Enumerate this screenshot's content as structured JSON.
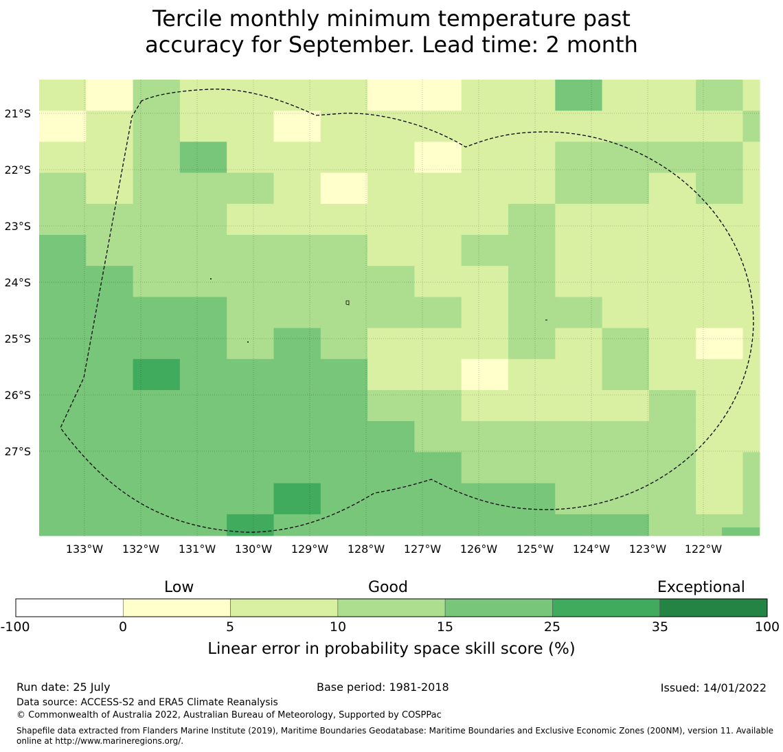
{
  "title": {
    "line1": "Tercile monthly minimum temperature past",
    "line2": "accuracy for September. Lead time: 2 month"
  },
  "map": {
    "lat_labels": [
      "21°S",
      "22°S",
      "23°S",
      "24°S",
      "25°S",
      "26°S",
      "27°S"
    ],
    "lon_labels": [
      "133°W",
      "132°W",
      "131°W",
      "130°W",
      "129°W",
      "128°W",
      "127°W",
      "126°W",
      "125°W",
      "124°W",
      "123°W",
      "122°W"
    ],
    "grid": [
      [
        "c1",
        "c0",
        "c2",
        "c1",
        "c1",
        "c1",
        "c1",
        "c0",
        "c0",
        "c1",
        "c1",
        "c3",
        "c1",
        "c1",
        "c2",
        "c1"
      ],
      [
        "c0",
        "c1",
        "c2",
        "c1",
        "c1",
        "c0",
        "c1",
        "c1",
        "c1",
        "c1",
        "c1",
        "c1",
        "c1",
        "c1",
        "c1",
        "c2"
      ],
      [
        "c1",
        "c1",
        "c2",
        "c3",
        "c1",
        "c1",
        "c1",
        "c1",
        "c0",
        "c1",
        "c1",
        "c2",
        "c2",
        "c2",
        "c2",
        "c1"
      ],
      [
        "c2",
        "c1",
        "c2",
        "c2",
        "c2",
        "c1",
        "c0",
        "c1",
        "c1",
        "c1",
        "c1",
        "c2",
        "c2",
        "c1",
        "c2",
        "c1"
      ],
      [
        "c2",
        "c2",
        "c2",
        "c2",
        "c1",
        "c1",
        "c1",
        "c1",
        "c1",
        "c1",
        "c2",
        "c1",
        "c1",
        "c1",
        "c1",
        "c1"
      ],
      [
        "c3",
        "c2",
        "c2",
        "c2",
        "c2",
        "c2",
        "c2",
        "c1",
        "c1",
        "c2",
        "c2",
        "c1",
        "c1",
        "c1",
        "c1",
        "c1"
      ],
      [
        "c3",
        "c3",
        "c2",
        "c2",
        "c2",
        "c2",
        "c2",
        "c2",
        "c1",
        "c1",
        "c2",
        "c1",
        "c1",
        "c1",
        "c1",
        "c1"
      ],
      [
        "c3",
        "c3",
        "c3",
        "c3",
        "c2",
        "c2",
        "c2",
        "c2",
        "c2",
        "c1",
        "c2",
        "c2",
        "c1",
        "c1",
        "c1",
        "c1"
      ],
      [
        "c3",
        "c3",
        "c3",
        "c3",
        "c2",
        "c3",
        "c2",
        "c1",
        "c1",
        "c1",
        "c2",
        "c1",
        "c2",
        "c1",
        "c0",
        "c1"
      ],
      [
        "c3",
        "c3",
        "c4",
        "c3",
        "c3",
        "c3",
        "c3",
        "c1",
        "c1",
        "c0",
        "c1",
        "c1",
        "c2",
        "c1",
        "c1",
        "c1"
      ],
      [
        "c3",
        "c3",
        "c3",
        "c3",
        "c3",
        "c3",
        "c3",
        "c2",
        "c2",
        "c1",
        "c1",
        "c1",
        "c1",
        "c2",
        "c1",
        "c1"
      ],
      [
        "c3",
        "c3",
        "c3",
        "c3",
        "c3",
        "c3",
        "c3",
        "c3",
        "c2",
        "c2",
        "c2",
        "c2",
        "c2",
        "c2",
        "c1",
        "c1"
      ],
      [
        "c3",
        "c3",
        "c3",
        "c3",
        "c3",
        "c3",
        "c3",
        "c3",
        "c3",
        "c2",
        "c2",
        "c2",
        "c2",
        "c2",
        "c1",
        "c2"
      ],
      [
        "c3",
        "c3",
        "c3",
        "c3",
        "c3",
        "c4",
        "c3",
        "c3",
        "c3",
        "c3",
        "c3",
        "c2",
        "c2",
        "c2",
        "c1",
        "c2"
      ],
      [
        "c3",
        "c3",
        "c3",
        "c3",
        "c4",
        "c3",
        "c3",
        "c3",
        "c3",
        "c3",
        "c3",
        "c3",
        "c3",
        "c2",
        "c2",
        "c2"
      ]
    ]
  },
  "legend": {
    "categories": [
      "Low",
      "Good",
      "Exceptional"
    ],
    "bins": [
      {
        "from": "-100",
        "to": "0",
        "color": "#ffffff"
      },
      {
        "from": "0",
        "to": "5",
        "color": "#ffffcc"
      },
      {
        "from": "5",
        "to": "10",
        "color": "#d9f0a3"
      },
      {
        "from": "10",
        "to": "15",
        "color": "#addd8e"
      },
      {
        "from": "15",
        "to": "25",
        "color": "#78c679"
      },
      {
        "from": "25",
        "to": "35",
        "color": "#41ab5d"
      },
      {
        "from": "35",
        "to": "100",
        "color": "#238443"
      }
    ],
    "ticks": [
      "-100",
      "0",
      "5",
      "10",
      "15",
      "25",
      "35",
      "100"
    ],
    "label": "Linear error in probability space skill score (%)"
  },
  "colors": {
    "c0": "#ffffcc",
    "c1": "#d9f0a3",
    "c2": "#addd8e",
    "c3": "#78c679",
    "c4": "#41ab5d"
  },
  "footer": {
    "run_date": "Run date: 25 July",
    "base_period": "Base period: 1981-2018",
    "issued": "Issued: 14/01/2022",
    "data_source": "Data source: ACCESS-S2 and ERA5 Climate Reanalysis",
    "copyright": "© Commonwealth of Australia 2022, Australian Bureau of Meteorology, Supported by COSPPac",
    "shapefile": "Shapefile data extracted from Flanders Marine Institute (2019), Maritime Boundaries Geodatabase: Maritime Boundaries and Exclusive Economic Zones (200NM), version 11. Available online at http://www.marineregions.org/."
  }
}
